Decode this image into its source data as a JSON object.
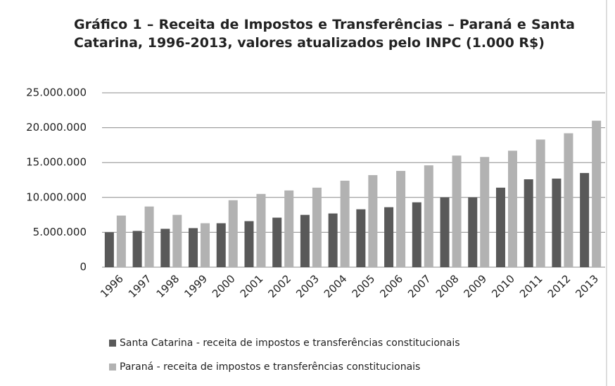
{
  "chart_data": {
    "type": "bar",
    "title": "Gráfico 1 – Receita de Impostos e Transferências – Paraná e Santa Catarina, 1996-2013, valores atualizados pelo INPC (1.000 R$)",
    "categories": [
      "1996",
      "1997",
      "1998",
      "1999",
      "2000",
      "2001",
      "2002",
      "2003",
      "2004",
      "2005",
      "2006",
      "2007",
      "2008",
      "2009",
      "2010",
      "2011",
      "2012",
      "2013"
    ],
    "series": [
      {
        "name": "Santa Catarina - receita de impostos e transferências constitucionais",
        "color": "#595959",
        "values": [
          5000000,
          5200000,
          5500000,
          5600000,
          6300000,
          6600000,
          7100000,
          7500000,
          7700000,
          8300000,
          8600000,
          9300000,
          10000000,
          10000000,
          11400000,
          12600000,
          12700000,
          13500000
        ]
      },
      {
        "name": "Paraná - receita de impostos e transferências constitucionais",
        "color": "#b2b2b2",
        "values": [
          7400000,
          8700000,
          7500000,
          6300000,
          9600000,
          10500000,
          11000000,
          11400000,
          12400000,
          13200000,
          13800000,
          14600000,
          16000000,
          15800000,
          16700000,
          18300000,
          19200000,
          21000000
        ]
      }
    ],
    "ylim": [
      0,
      25000000
    ],
    "yticks": [
      0,
      {
        "value": 5000000,
        "label": "5.000.000"
      },
      {
        "value": 10000000,
        "label": "10.000.000"
      },
      {
        "value": 15000000,
        "label": "15.000.000"
      },
      {
        "value": 20000000,
        "label": "20.000.000"
      },
      {
        "value": 25000000,
        "label": "25.000.000"
      }
    ],
    "grid": true,
    "legend": "bottom"
  }
}
